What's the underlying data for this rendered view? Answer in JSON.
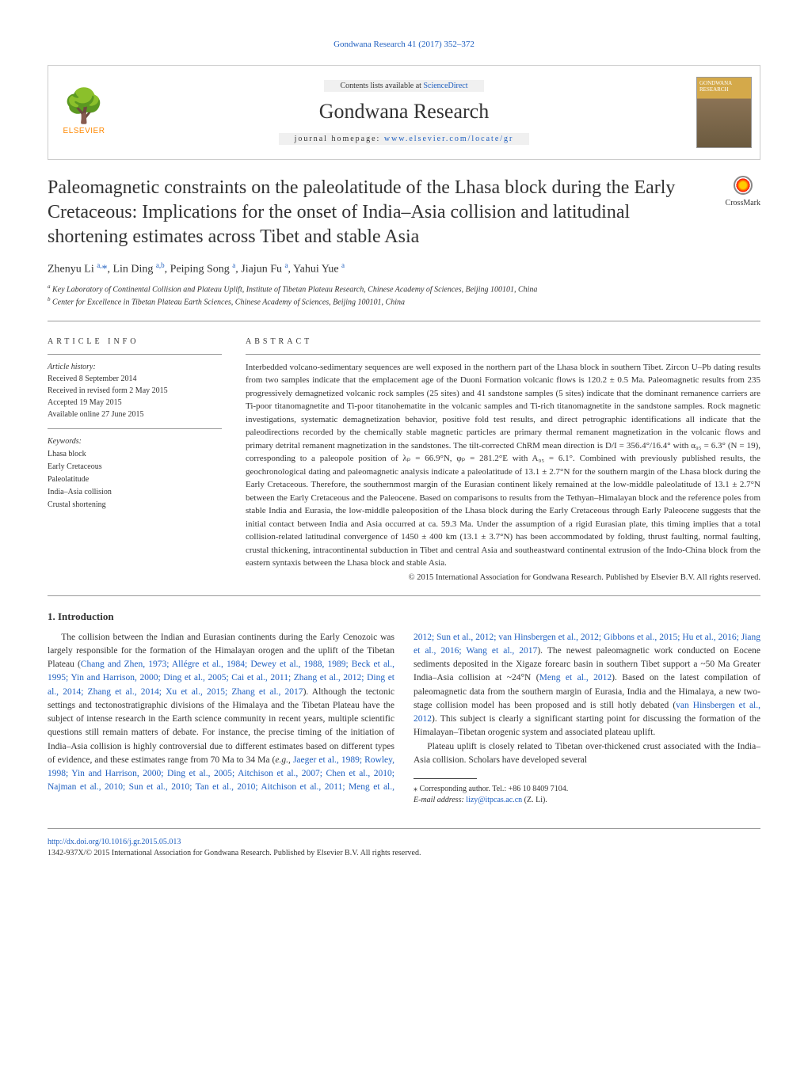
{
  "header": {
    "citation": "Gondwana Research 41 (2017) 352–372",
    "contents_prefix": "Contents lists available at ",
    "contents_link": "ScienceDirect",
    "journal_title": "Gondwana Research",
    "homepage_prefix": "journal homepage: ",
    "homepage_url": "www.elsevier.com/locate/gr",
    "publisher_name": "ELSEVIER",
    "cover_text": "GONDWANA RESEARCH",
    "crossmark_label": "CrossMark"
  },
  "article": {
    "title": "Paleomagnetic constraints on the paleolatitude of the Lhasa block during the Early Cretaceous: Implications for the onset of India–Asia collision and latitudinal shortening estimates across Tibet and stable Asia",
    "authors_html": "Zhenyu Li <span class='sup'>a,</span><span class='star'>*</span>, Lin Ding <span class='sup'>a,b</span>, Peiping Song <span class='sup'>a</span>, Jiajun Fu <span class='sup'>a</span>, Yahui Yue <span class='sup'>a</span>",
    "affiliations": [
      "Key Laboratory of Continental Collision and Plateau Uplift, Institute of Tibetan Plateau Research, Chinese Academy of Sciences, Beijing 100101, China",
      "Center for Excellence in Tibetan Plateau Earth Sciences, Chinese Academy of Sciences, Beijing 100101, China"
    ],
    "aff_markers": [
      "a",
      "b"
    ]
  },
  "info": {
    "section_label": "ARTICLE INFO",
    "history_label": "Article history:",
    "history": [
      "Received 8 September 2014",
      "Received in revised form 2 May 2015",
      "Accepted 19 May 2015",
      "Available online 27 June 2015"
    ],
    "keywords_label": "Keywords:",
    "keywords": [
      "Lhasa block",
      "Early Cretaceous",
      "Paleolatitude",
      "India–Asia collision",
      "Crustal shortening"
    ]
  },
  "abstract": {
    "section_label": "ABSTRACT",
    "text": "Interbedded volcano-sedimentary sequences are well exposed in the northern part of the Lhasa block in southern Tibet. Zircon U–Pb dating results from two samples indicate that the emplacement age of the Duoni Formation volcanic flows is 120.2 ± 0.5 Ma. Paleomagnetic results from 235 progressively demagnetized volcanic rock samples (25 sites) and 41 sandstone samples (5 sites) indicate that the dominant remanence carriers are Ti-poor titanomagnetite and Ti-poor titanohematite in the volcanic samples and Ti-rich titanomagnetite in the sandstone samples. Rock magnetic investigations, systematic demagnetization behavior, positive fold test results, and direct petrographic identifications all indicate that the paleodirections recorded by the chemically stable magnetic particles are primary thermal remanent magnetization in the volcanic flows and primary detrital remanent magnetization in the sandstones. The tilt-corrected ChRM mean direction is D/I = 356.4°/16.4° with α₉₅ = 6.3° (N = 19), corresponding to a paleopole position of λₚ = 66.9°N, φₚ = 281.2°E with A₉₅ = 6.1°. Combined with previously published results, the geochronological dating and paleomagnetic analysis indicate a paleolatitude of 13.1 ± 2.7°N for the southern margin of the Lhasa block during the Early Cretaceous. Therefore, the southernmost margin of the Eurasian continent likely remained at the low-middle paleolatitude of 13.1 ± 2.7°N between the Early Cretaceous and the Paleocene. Based on comparisons to results from the Tethyan–Himalayan block and the reference poles from stable India and Eurasia, the low-middle paleoposition of the Lhasa block during the Early Cretaceous through Early Paleocene suggests that the initial contact between India and Asia occurred at ca. 59.3 Ma. Under the assumption of a rigid Eurasian plate, this timing implies that a total collision-related latitudinal convergence of 1450 ± 400 km (13.1 ± 3.7°N) has been accommodated by folding, thrust faulting, normal faulting, crustal thickening, intracontinental subduction in Tibet and central Asia and southeastward continental extrusion of the Indo-China block from the eastern syntaxis between the Lhasa block and stable Asia.",
    "copyright": "© 2015 International Association for Gondwana Research. Published by Elsevier B.V. All rights reserved."
  },
  "body": {
    "section_number": "1.",
    "section_title": "Introduction",
    "para1_pre": "The collision between the Indian and Eurasian continents during the Early Cenozoic was largely responsible for the formation of the Himalayan orogen and the uplift of the Tibetan Plateau (",
    "para1_cite": "Chang and Zhen, 1973; Allégre et al., 1984; Dewey et al., 1988, 1989; Beck et al., 1995; Yin and Harrison, 2000; Ding et al., 2005; Cai et al., 2011; Zhang et al., 2012; Ding et al., 2014; Zhang et al., 2014; Xu et al., 2015; Zhang et al., 2017",
    "para1_post": "). Although the tectonic settings and tectonostratigraphic divisions of the Himalaya and the Tibetan Plateau have the subject of intense research in the Earth science community in recent years, multiple scientific questions still remain matters of debate. For instance, the precise timing of the initiation of India–Asia collision is highly controversial due to different estimates based on different types of evidence, and these estimates range from 70 Ma to 34 Ma (",
    "para1_eg": "e.g.",
    "para1_cite2": "Jaeger et al., 1989; Rowley, 1998; Yin and Harrison, 2000; Ding et al., 2005; Aitchison et al., 2007; Chen et al., 2010; Najman et al., 2010; Sun et al., 2010; Tan et al., 2010; Aitchison et al., 2011; Meng et al., 2012; Sun et al., 2012; van Hinsbergen et al., 2012; Gibbons et al., 2015; Hu et al., 2016; Jiang et al., 2016; Wang et al., 2017",
    "para1_mid2": "). The newest paleomagnetic work conducted on Eocene sediments deposited in the Xigaze forearc basin in southern Tibet support a ~50 Ma Greater India–Asia collision at ~24°N (",
    "para1_cite3": "Meng et al., 2012",
    "para1_mid3": "). Based on the latest compilation of paleomagnetic data from the southern margin of Eurasia, India and the Himalaya, a new two-stage collision model has been proposed and is still hotly debated (",
    "para1_cite4": "van Hinsbergen et al., 2012",
    "para1_end": "). This subject is clearly a significant starting point for discussing the formation of the Himalayan–Tibetan orogenic system and associated plateau uplift.",
    "para2": "Plateau uplift is closely related to Tibetan over-thickened crust associated with the India–Asia collision. Scholars have developed several"
  },
  "corresponding": {
    "marker": "⁎",
    "text": "Corresponding author. Tel.: +86 10 8409 7104.",
    "email_label": "E-mail address:",
    "email": "lizy@itpcas.ac.cn",
    "email_suffix": "(Z. Li)."
  },
  "footer": {
    "doi": "http://dx.doi.org/10.1016/j.gr.2015.05.013",
    "copyright": "1342-937X/© 2015 International Association for Gondwana Research. Published by Elsevier B.V. All rights reserved."
  }
}
